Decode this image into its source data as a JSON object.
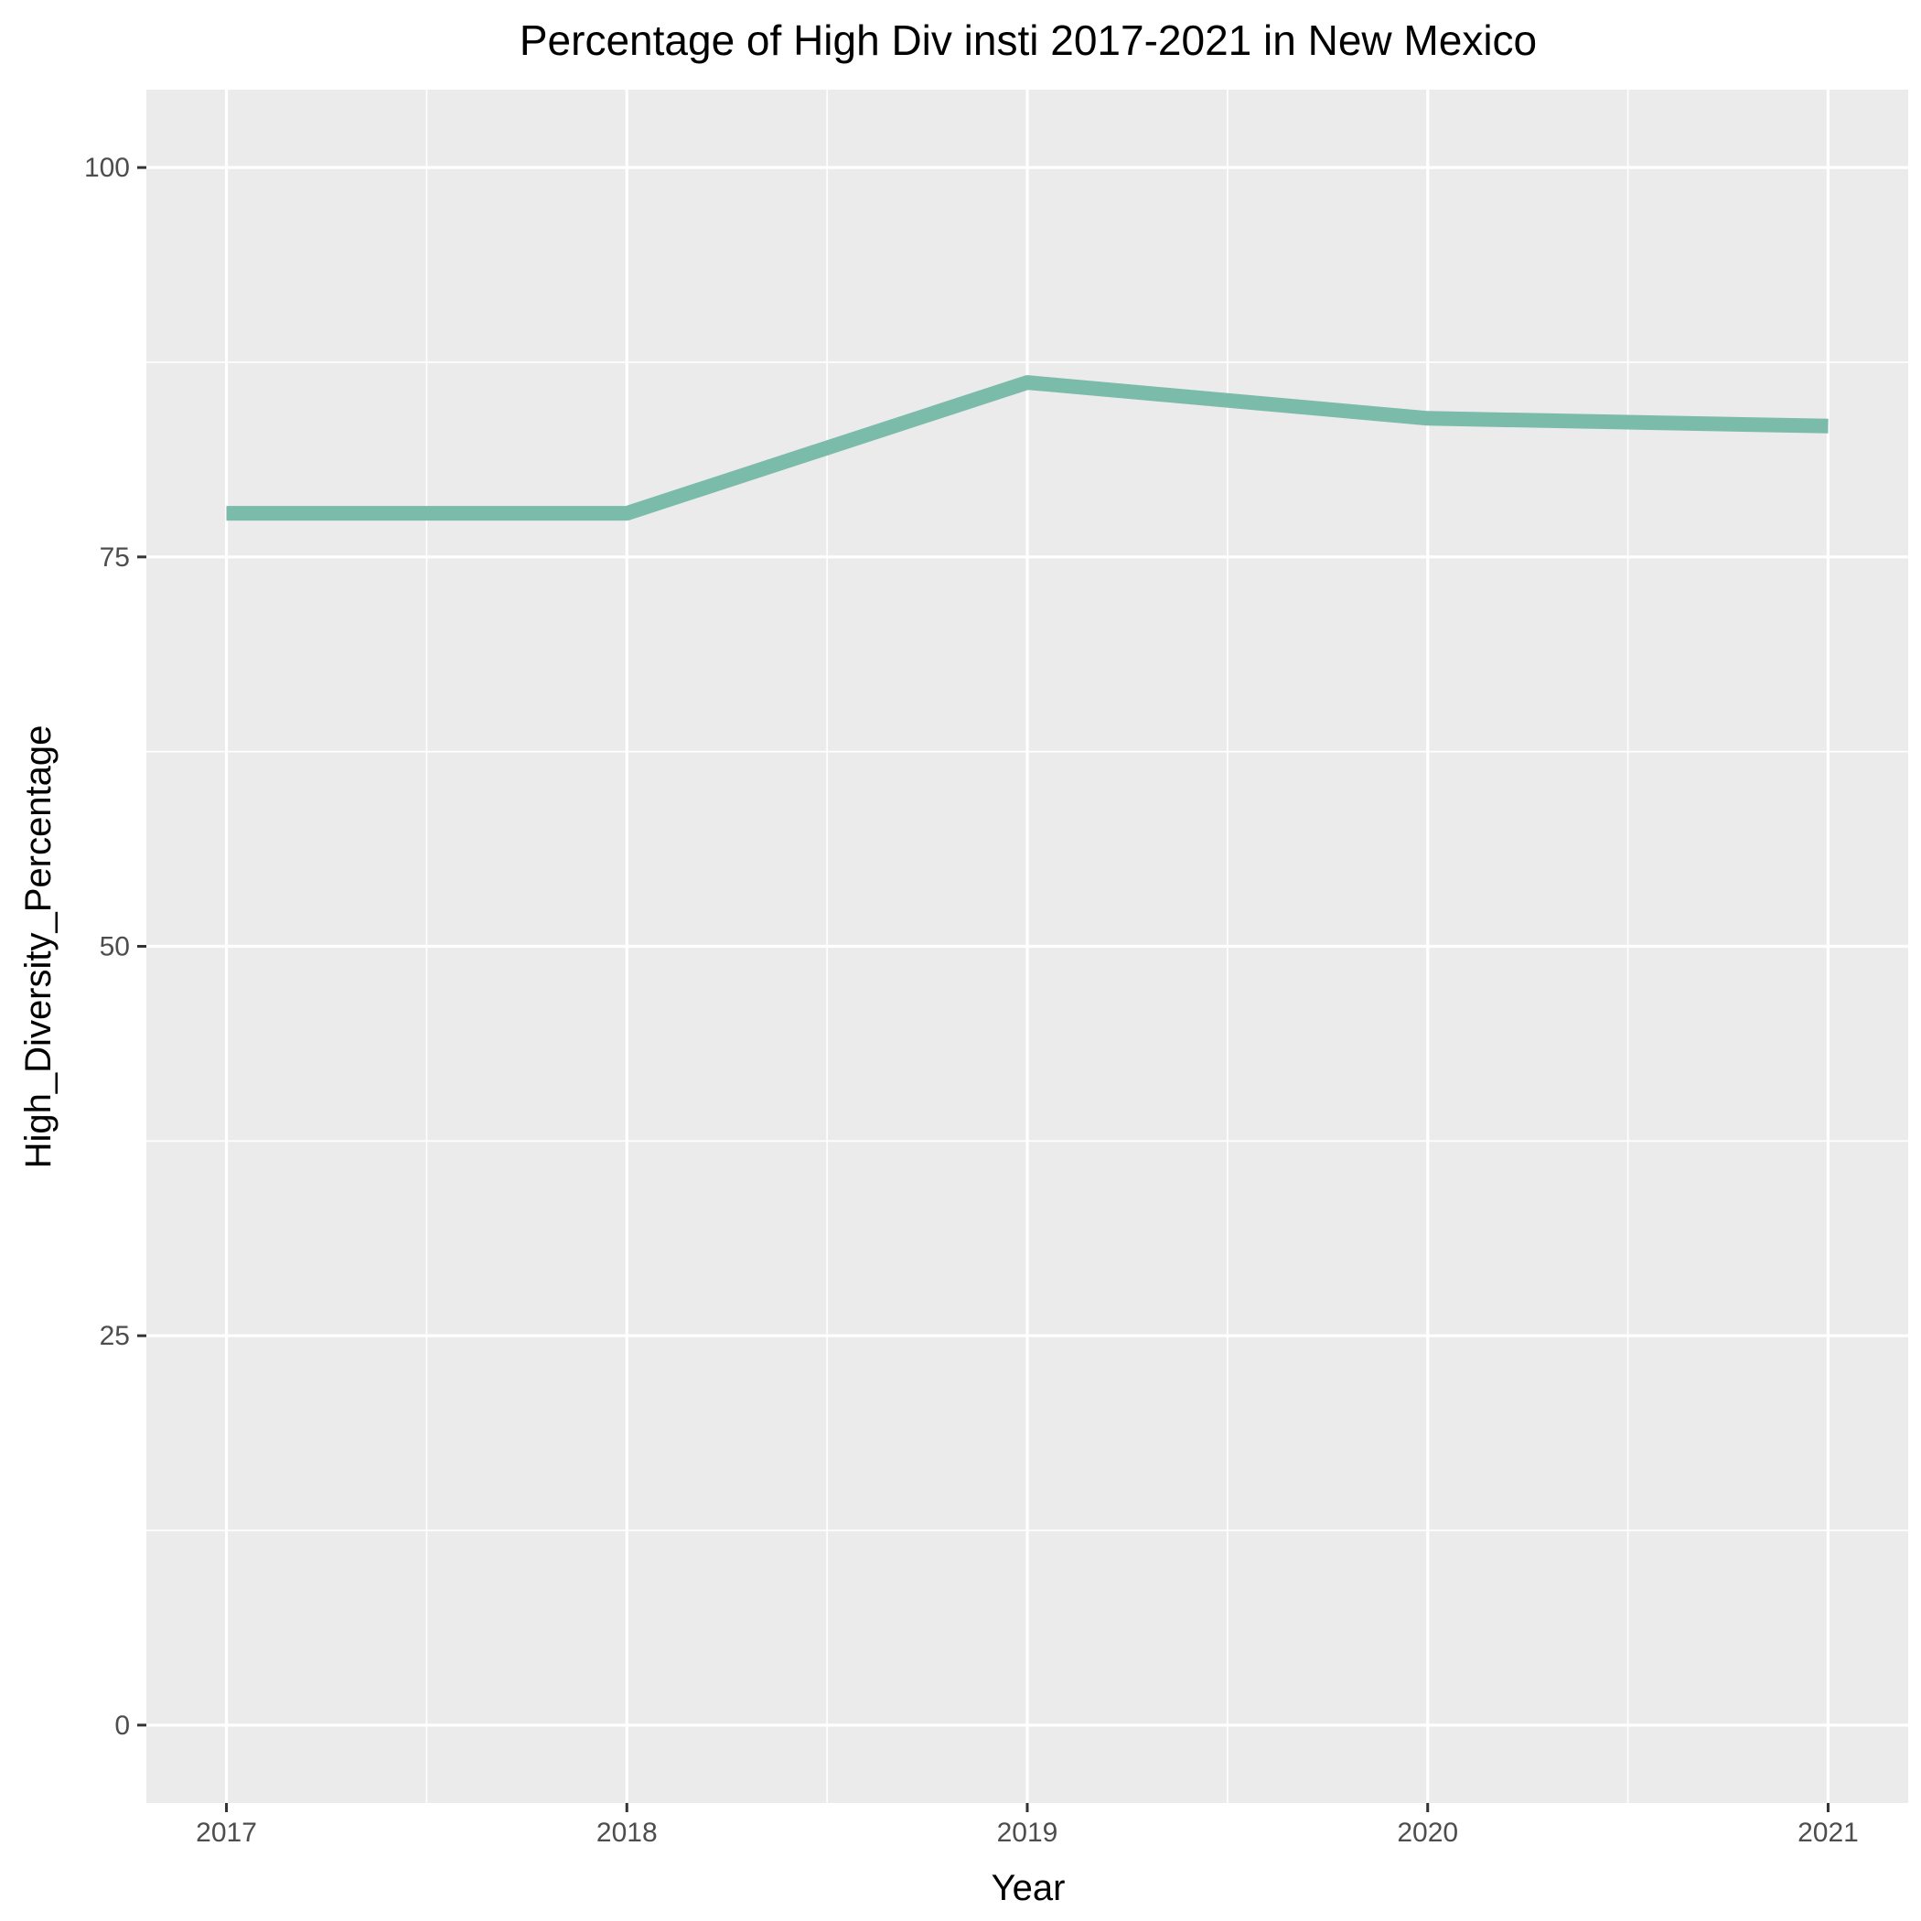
{
  "chart_data": {
    "type": "line",
    "title": "Percentage of High Div insti 2017-2021 in New Mexico",
    "xlabel": "Year",
    "ylabel": "High_Diversity_Percentage",
    "x": [
      2017,
      2018,
      2019,
      2020,
      2021
    ],
    "series": [
      {
        "values": [
          77.8,
          77.8,
          86.2,
          83.9,
          83.4
        ]
      }
    ],
    "xlim": [
      2016.8,
      2021.2
    ],
    "ylim": [
      -5,
      105
    ],
    "x_ticks": [
      "2017",
      "2018",
      "2019",
      "2020",
      "2021"
    ],
    "y_ticks": [
      "0",
      "25",
      "50",
      "75",
      "100"
    ],
    "grid": true,
    "legend": "none",
    "colors": {
      "line": "#7bbbaa",
      "panel_background": "#ebebeb",
      "grid": "#ffffff",
      "tick_text": "#4d4d4d"
    }
  }
}
